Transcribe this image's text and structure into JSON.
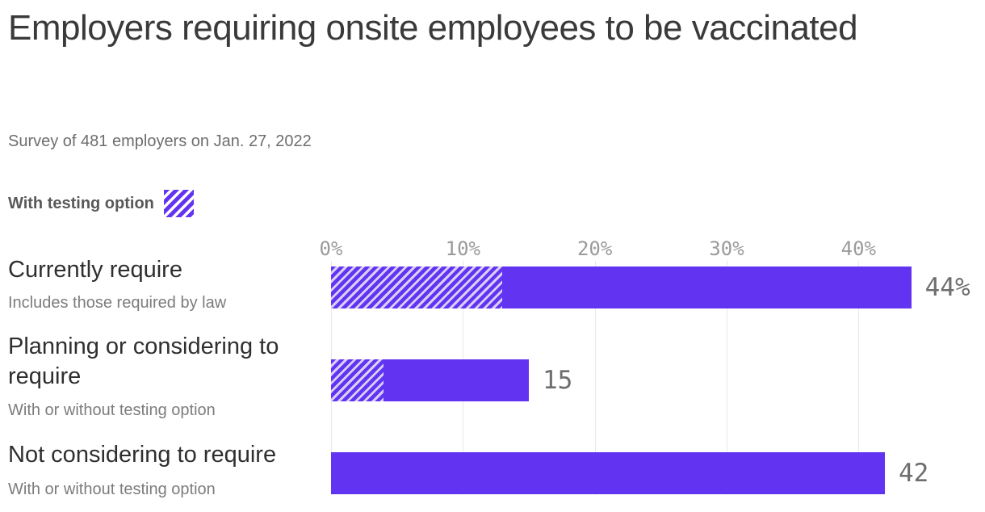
{
  "header": {
    "title": "Employers requiring onsite employees to be vaccinated",
    "subtitle": "Survey of 481 employers on Jan. 27, 2022"
  },
  "legend": {
    "label": "With testing option",
    "swatch_style": "purple-diagonal-hatch"
  },
  "colors": {
    "bar_solid": "#6333f2",
    "hatch_light": "#d7cff5",
    "legend_hatch_light": "#ffffff",
    "gridline": "#e8e8e8",
    "title_text": "#3a3a3a",
    "value_text": "#6e6e6e",
    "tick_text": "#9a9a9a"
  },
  "chart_data": {
    "type": "bar",
    "orientation": "horizontal",
    "title": "Employers requiring onsite employees to be vaccinated",
    "subtitle": "Survey of 481 employers on Jan. 27, 2022",
    "unit": "percent",
    "grid": "vertical-lines",
    "xlim": [
      0,
      45
    ],
    "x_ticks": [
      {
        "value": 0,
        "label": "0%"
      },
      {
        "value": 10,
        "label": "10%"
      },
      {
        "value": 20,
        "label": "20%"
      },
      {
        "value": 30,
        "label": "30%"
      },
      {
        "value": 40,
        "label": "40%"
      }
    ],
    "legend_entries": [
      {
        "name": "With testing option",
        "style": "hatched"
      }
    ],
    "categories": [
      {
        "label": "Currently require",
        "sublabel": "Includes those required by law",
        "total": 44,
        "with_testing_option": 13,
        "value_label": "44%"
      },
      {
        "label": "Planning or considering to require",
        "sublabel": "With or without testing option",
        "total": 15,
        "with_testing_option": 4,
        "value_label": "15"
      },
      {
        "label": "Not considering to require",
        "sublabel": "With or without testing option",
        "total": 42,
        "with_testing_option": 0,
        "value_label": "42"
      }
    ]
  }
}
